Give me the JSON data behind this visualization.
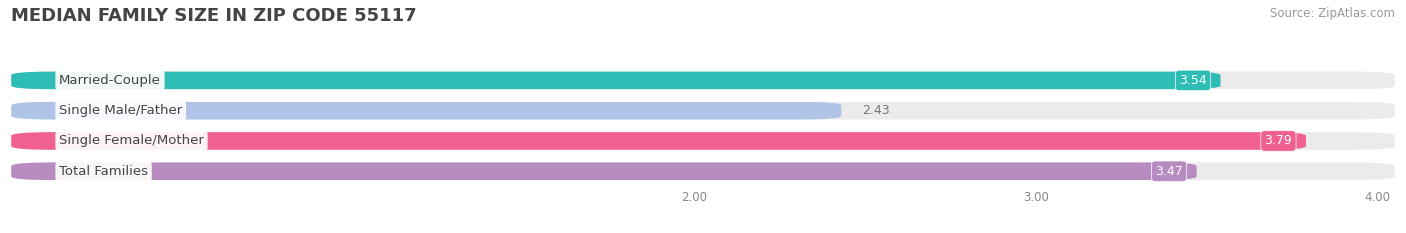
{
  "title": "MEDIAN FAMILY SIZE IN ZIP CODE 55117",
  "source": "Source: ZipAtlas.com",
  "categories": [
    "Married-Couple",
    "Single Male/Father",
    "Single Female/Mother",
    "Total Families"
  ],
  "values": [
    3.54,
    2.43,
    3.79,
    3.47
  ],
  "bar_colors": [
    "#2dbdb5",
    "#b0c4e8",
    "#f06090",
    "#b88cc0"
  ],
  "value_label_colors": [
    "#2dbdb5",
    "#b0c4e8",
    "#f06090",
    "#b88cc0"
  ],
  "label_text_color": "#555555",
  "xmin": 0.0,
  "xmax": 4.05,
  "xtick_start": 2.0,
  "xticks": [
    2.0,
    3.0,
    4.0
  ],
  "title_fontsize": 13,
  "source_fontsize": 8.5,
  "label_fontsize": 9.5,
  "value_fontsize": 9,
  "background_color": "#ffffff",
  "bar_bg_color": "#ebebeb",
  "bar_height": 0.58,
  "value_dark": [
    false,
    true,
    false,
    true
  ],
  "value_colors_text": [
    "#ffffff",
    "#777777",
    "#ffffff",
    "#ffffff"
  ]
}
